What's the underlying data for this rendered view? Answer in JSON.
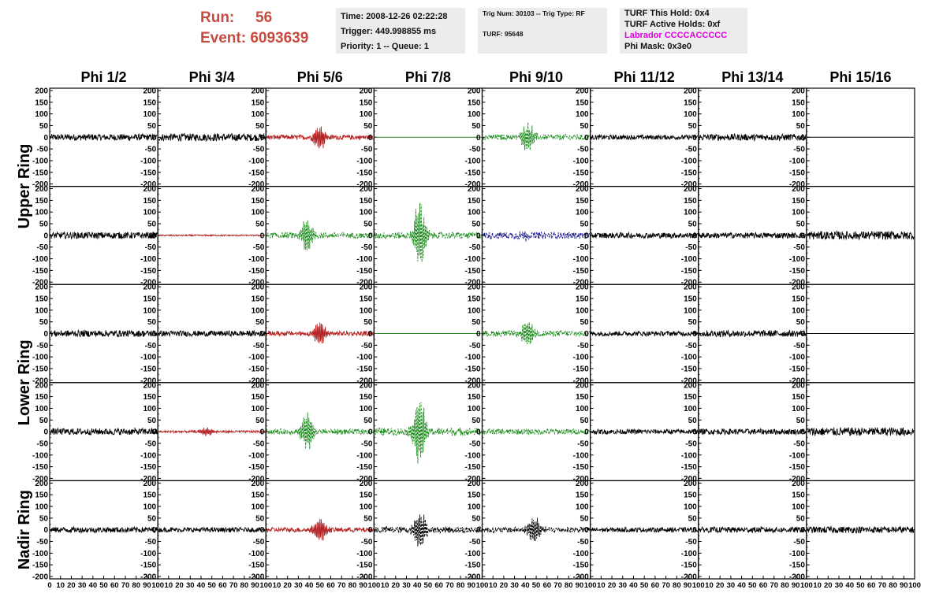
{
  "header": {
    "run_label": "Run:",
    "run_value": "56",
    "event_label": "Event:",
    "event_value": "6093639",
    "box1": {
      "time": "Time: 2008-12-26 02:22:28",
      "trigger": "Trigger: 449.998855 ms",
      "priority": "Priority: 1 -- Queue: 1"
    },
    "box2": {
      "trig": "Trig Num: 30103 -- Trig Type: RF",
      "turf": "TURF: 95648"
    },
    "box3": {
      "hold": "TURF This Hold: 0x4",
      "active": "TURF Active Holds: 0xf",
      "labrador": "Labrador CCCCACCCCC",
      "phimask": "Phi Mask: 0x3e0"
    }
  },
  "colors": {
    "run_text": "#c84a3e",
    "labrador_text": "#e000e0",
    "info_bg": "#ececec",
    "trace_black": "#000000",
    "trace_red": "#b22222",
    "trace_green": "#1e8c1e",
    "trace_blue": "#1a1a8c"
  },
  "chart_data": {
    "type": "line",
    "columns": [
      "Phi 1/2",
      "Phi 3/4",
      "Phi 5/6",
      "Phi 7/8",
      "Phi 9/10",
      "Phi 11/12",
      "Phi 13/14",
      "Phi 15/16"
    ],
    "row_labels": [
      "Upper Ring",
      "Lower Ring",
      "Nadir Ring"
    ],
    "y_ticks": [
      200,
      150,
      100,
      50,
      0,
      -50,
      -100,
      -150,
      -200
    ],
    "y_tick_labels": [
      "200",
      "150",
      "100",
      "50",
      "0",
      "-50",
      "-100",
      "-150",
      "-200"
    ],
    "x_tick_labels": [
      "0",
      "10",
      "20",
      "30",
      "40",
      "50",
      "60",
      "70",
      "80",
      "90",
      "100"
    ],
    "xlim": [
      0,
      100
    ],
    "ylim": [
      -210,
      210
    ],
    "panels": [
      [
        {
          "color": "black",
          "style": "solid",
          "amp": 14,
          "burst": 0,
          "center": 0
        },
        {
          "color": "black",
          "style": "solid",
          "amp": 16,
          "burst": 0,
          "center": 0
        },
        {
          "color": "red",
          "style": "solid",
          "amp": 10,
          "burst": 55,
          "center": 50
        },
        {
          "color": "green",
          "style": "flat",
          "amp": 0,
          "burst": 0,
          "center": 0
        },
        {
          "color": "green",
          "style": "dashed",
          "amp": 12,
          "burst": 70,
          "center": 42
        },
        {
          "color": "black",
          "style": "solid",
          "amp": 10,
          "burst": 0,
          "center": 0
        },
        {
          "color": "black",
          "style": "solid",
          "amp": 14,
          "burst": 0,
          "center": 0
        },
        {
          "color": "black",
          "style": "flat",
          "amp": 0,
          "burst": 0,
          "center": 0
        }
      ],
      [
        {
          "color": "black",
          "style": "solid",
          "amp": 14,
          "burst": 0,
          "center": 0
        },
        {
          "color": "red",
          "style": "solid",
          "amp": 3,
          "burst": 0,
          "center": 0
        },
        {
          "color": "green",
          "style": "dashed",
          "amp": 12,
          "burst": 80,
          "center": 38
        },
        {
          "color": "green",
          "style": "dashed",
          "amp": 14,
          "burst": 150,
          "center": 42
        },
        {
          "color": "blue",
          "style": "dashed",
          "amp": 14,
          "burst": 20,
          "center": 40
        },
        {
          "color": "black",
          "style": "solid",
          "amp": 12,
          "burst": 0,
          "center": 0
        },
        {
          "color": "black",
          "style": "solid",
          "amp": 12,
          "burst": 0,
          "center": 0
        },
        {
          "color": "black",
          "style": "solid",
          "amp": 18,
          "burst": 0,
          "center": 0
        }
      ],
      [
        {
          "color": "black",
          "style": "solid",
          "amp": 14,
          "burst": 0,
          "center": 0
        },
        {
          "color": "black",
          "style": "solid",
          "amp": 12,
          "burst": 0,
          "center": 0
        },
        {
          "color": "red",
          "style": "solid",
          "amp": 10,
          "burst": 55,
          "center": 50
        },
        {
          "color": "green",
          "style": "flat",
          "amp": 0,
          "burst": 0,
          "center": 0
        },
        {
          "color": "green",
          "style": "dashed",
          "amp": 12,
          "burst": 60,
          "center": 42
        },
        {
          "color": "black",
          "style": "solid",
          "amp": 10,
          "burst": 0,
          "center": 0
        },
        {
          "color": "black",
          "style": "solid",
          "amp": 14,
          "burst": 0,
          "center": 0
        },
        {
          "color": "black",
          "style": "flat",
          "amp": 0,
          "burst": 0,
          "center": 0
        }
      ],
      [
        {
          "color": "black",
          "style": "solid",
          "amp": 14,
          "burst": 0,
          "center": 0
        },
        {
          "color": "red",
          "style": "solid",
          "amp": 5,
          "burst": 18,
          "center": 45
        },
        {
          "color": "green",
          "style": "dashed",
          "amp": 12,
          "burst": 85,
          "center": 38
        },
        {
          "color": "green",
          "style": "dashed",
          "amp": 16,
          "burst": 150,
          "center": 42
        },
        {
          "color": "green",
          "style": "dashed",
          "amp": 12,
          "burst": 0,
          "center": 0
        },
        {
          "color": "black",
          "style": "solid",
          "amp": 10,
          "burst": 0,
          "center": 0
        },
        {
          "color": "black",
          "style": "solid",
          "amp": 12,
          "burst": 0,
          "center": 0
        },
        {
          "color": "black",
          "style": "solid",
          "amp": 18,
          "burst": 0,
          "center": 0
        }
      ],
      [
        {
          "color": "black",
          "style": "solid",
          "amp": 12,
          "burst": 0,
          "center": 0
        },
        {
          "color": "black",
          "style": "solid",
          "amp": 10,
          "burst": 0,
          "center": 0
        },
        {
          "color": "red",
          "style": "solid",
          "amp": 10,
          "burst": 55,
          "center": 50
        },
        {
          "color": "black",
          "style": "dashed",
          "amp": 14,
          "burst": 90,
          "center": 42
        },
        {
          "color": "black",
          "style": "dashed",
          "amp": 12,
          "burst": 60,
          "center": 48
        },
        {
          "color": "black",
          "style": "solid",
          "amp": 10,
          "burst": 0,
          "center": 0
        },
        {
          "color": "black",
          "style": "solid",
          "amp": 12,
          "burst": 0,
          "center": 0
        },
        {
          "color": "black",
          "style": "solid",
          "amp": 14,
          "burst": 0,
          "center": 0
        }
      ]
    ]
  }
}
